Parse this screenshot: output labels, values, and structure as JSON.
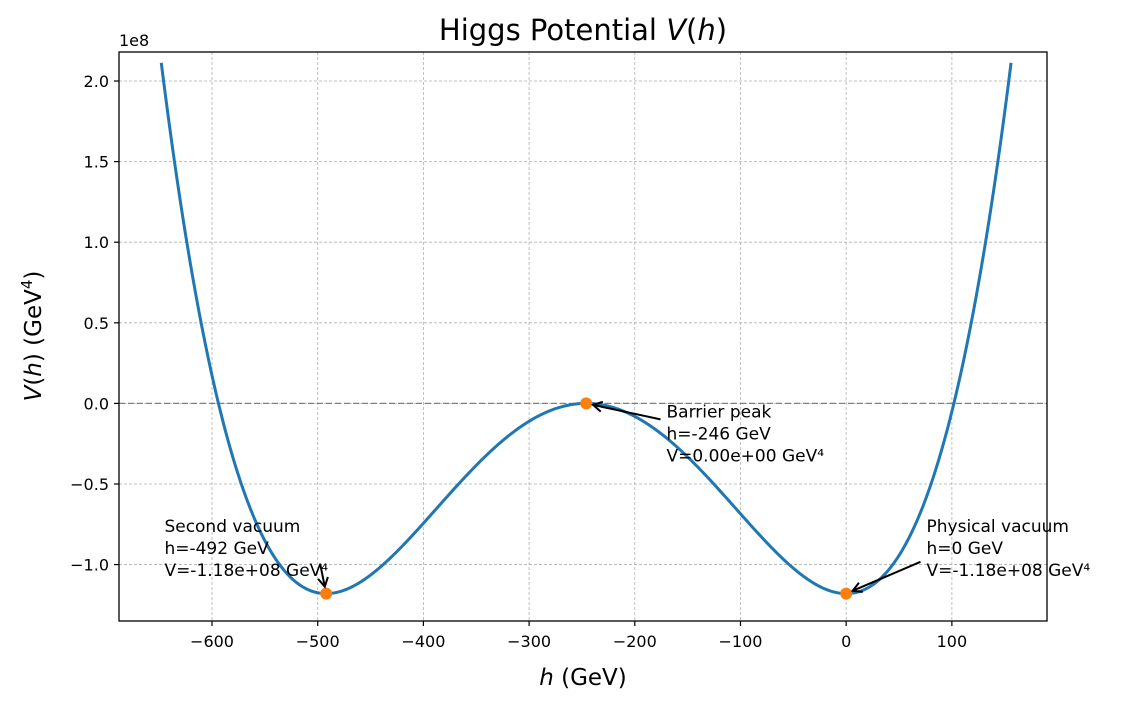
{
  "chart_data": {
    "type": "line",
    "title": "Higgs Potential V(h)",
    "title_parts": [
      "Higgs Potential ",
      "V",
      "(",
      "h",
      ")"
    ],
    "xlabel_parts": [
      "h",
      " (GeV)"
    ],
    "ylabel_parts": [
      "V",
      "(",
      "h",
      ")",
      " (GeV",
      "4",
      ")"
    ],
    "y_offset_text": "1e8",
    "xlim": [
      -688,
      190
    ],
    "ylim": [
      -1.35,
      2.18
    ],
    "x_ticks": [
      -600,
      -500,
      -400,
      -300,
      -200,
      -100,
      0,
      100
    ],
    "x_tick_labels": [
      "−600",
      "−500",
      "−400",
      "−300",
      "−200",
      "−100",
      "0",
      "100"
    ],
    "y_ticks": [
      -1.0,
      -0.5,
      0.0,
      0.5,
      1.0,
      1.5,
      2.0
    ],
    "y_tick_labels": [
      "−1.0",
      "−0.5",
      "0.0",
      "0.5",
      "1.0",
      "1.5",
      "2.0"
    ],
    "grid": true,
    "zero_line": 0,
    "curve": {
      "name": "V(h)",
      "color": "#1f77b4",
      "x_range": [
        -648,
        156
      ],
      "v_param": 246,
      "v_min": -1.18
    },
    "points": [
      {
        "name": "Second vacuum",
        "h": -492,
        "V": -1.18
      },
      {
        "name": "Barrier peak",
        "h": -246,
        "V": 0.0
      },
      {
        "name": "Physical vacuum",
        "h": 0,
        "V": -1.18
      }
    ],
    "point_color": "#ff7f0e",
    "annotations": [
      {
        "lines": [
          "Second vacuum",
          "h=-492 GeV",
          "V=-1.18e+08 GeV⁴"
        ],
        "target": [
          -492,
          -1.18
        ],
        "text_pos": [
          -645,
          -0.71
        ],
        "align": "start"
      },
      {
        "lines": [
          "Barrier peak",
          "h=-246 GeV",
          "V=0.00e+00 GeV⁴"
        ],
        "target": [
          -246,
          0.0
        ],
        "text_pos": [
          -170,
          0.0
        ],
        "align": "start"
      },
      {
        "lines": [
          "Physical vacuum",
          "h=0 GeV",
          "V=-1.18e+08 GeV⁴"
        ],
        "target": [
          0,
          -1.18
        ],
        "text_pos": [
          76,
          -0.71
        ],
        "align": "start"
      }
    ]
  }
}
